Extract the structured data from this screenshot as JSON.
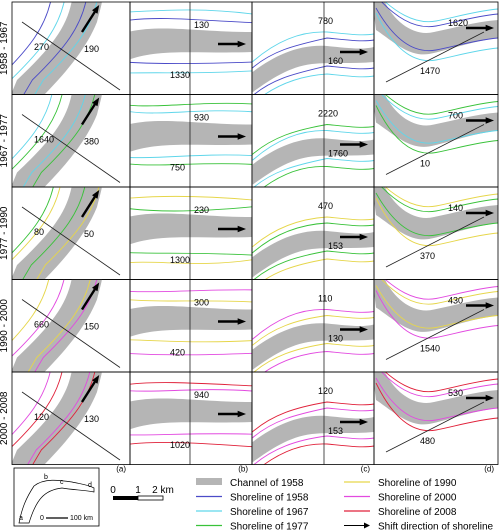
{
  "rows": [
    {
      "label": "1958 - 1967",
      "values": [
        [
          "270",
          "190"
        ],
        [
          "130",
          "1330"
        ],
        [
          "780",
          "160"
        ],
        [
          "1620",
          "1470"
        ]
      ]
    },
    {
      "label": "1967 - 1977",
      "values": [
        [
          "1640",
          "380"
        ],
        [
          "930",
          "750"
        ],
        [
          "2220",
          "1760"
        ],
        [
          "700",
          "10"
        ]
      ]
    },
    {
      "label": "1977 - 1990",
      "values": [
        [
          "80",
          "50"
        ],
        [
          "230",
          "1300"
        ],
        [
          "470",
          "153"
        ],
        [
          "140",
          "370"
        ]
      ]
    },
    {
      "label": "1990 - 2000",
      "values": [
        [
          "660",
          "150"
        ],
        [
          "300",
          "420"
        ],
        [
          "110",
          "130"
        ],
        [
          "430",
          "1540"
        ]
      ]
    },
    {
      "label": "2000 - 2008",
      "values": [
        [
          "120",
          "130"
        ],
        [
          "940",
          "1020"
        ],
        [
          "120",
          "153"
        ],
        [
          "530",
          "480"
        ]
      ]
    }
  ],
  "columns": [
    "(a)",
    "(b)",
    "(c)",
    "(d)"
  ],
  "inset": {
    "labels": [
      "a",
      "b",
      "c",
      "d"
    ],
    "scale": "100 km",
    "zero": "0"
  },
  "scale_bar": {
    "ticks": [
      "0",
      "1",
      "2 km"
    ]
  },
  "legend": [
    {
      "label": "Channel of 1958",
      "color": "#b5b5b5",
      "kind": "band"
    },
    {
      "label": "Shoreline of 1958",
      "color": "#4b4bc8",
      "kind": "line"
    },
    {
      "label": "Shoreline of 1967",
      "color": "#5fd6ea",
      "kind": "line"
    },
    {
      "label": "Shoreline of 1977",
      "color": "#39c23a",
      "kind": "line"
    },
    {
      "label": "Shoreline of 1990",
      "color": "#e6d64a",
      "kind": "line"
    },
    {
      "label": "Shoreline of 2000",
      "color": "#e24ae0",
      "kind": "line"
    },
    {
      "label": "Shoreline of 2008",
      "color": "#e0213a",
      "kind": "line"
    },
    {
      "label": "Shift direction of shoreline",
      "color": "#000000",
      "kind": "arrow"
    }
  ]
}
